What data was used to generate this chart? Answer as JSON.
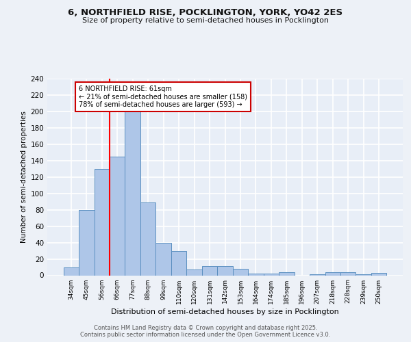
{
  "title1": "6, NORTHFIELD RISE, POCKLINGTON, YORK, YO42 2ES",
  "title2": "Size of property relative to semi-detached houses in Pocklington",
  "xlabel": "Distribution of semi-detached houses by size in Pocklington",
  "ylabel": "Number of semi-detached properties",
  "categories": [
    "34sqm",
    "45sqm",
    "56sqm",
    "66sqm",
    "77sqm",
    "88sqm",
    "99sqm",
    "110sqm",
    "120sqm",
    "131sqm",
    "142sqm",
    "153sqm",
    "164sqm",
    "174sqm",
    "185sqm",
    "196sqm",
    "207sqm",
    "218sqm",
    "228sqm",
    "239sqm",
    "250sqm"
  ],
  "values": [
    10,
    80,
    130,
    145,
    200,
    89,
    40,
    30,
    7,
    11,
    11,
    8,
    2,
    2,
    4,
    0,
    1,
    4,
    4,
    1,
    3
  ],
  "bar_color": "#aec6e8",
  "bar_edge_color": "#5a8fc0",
  "background_color": "#e8eef7",
  "grid_color": "#ffffff",
  "red_line_x": 2.5,
  "annotation_text": "6 NORTHFIELD RISE: 61sqm\n← 21% of semi-detached houses are smaller (158)\n78% of semi-detached houses are larger (593) →",
  "annotation_box_color": "#ffffff",
  "annotation_box_edge": "#cc0000",
  "footer_text": "Contains HM Land Registry data © Crown copyright and database right 2025.\nContains public sector information licensed under the Open Government Licence v3.0.",
  "ylim": [
    0,
    240
  ],
  "yticks": [
    0,
    20,
    40,
    60,
    80,
    100,
    120,
    140,
    160,
    180,
    200,
    220,
    240
  ],
  "fig_bg": "#edf1f7"
}
